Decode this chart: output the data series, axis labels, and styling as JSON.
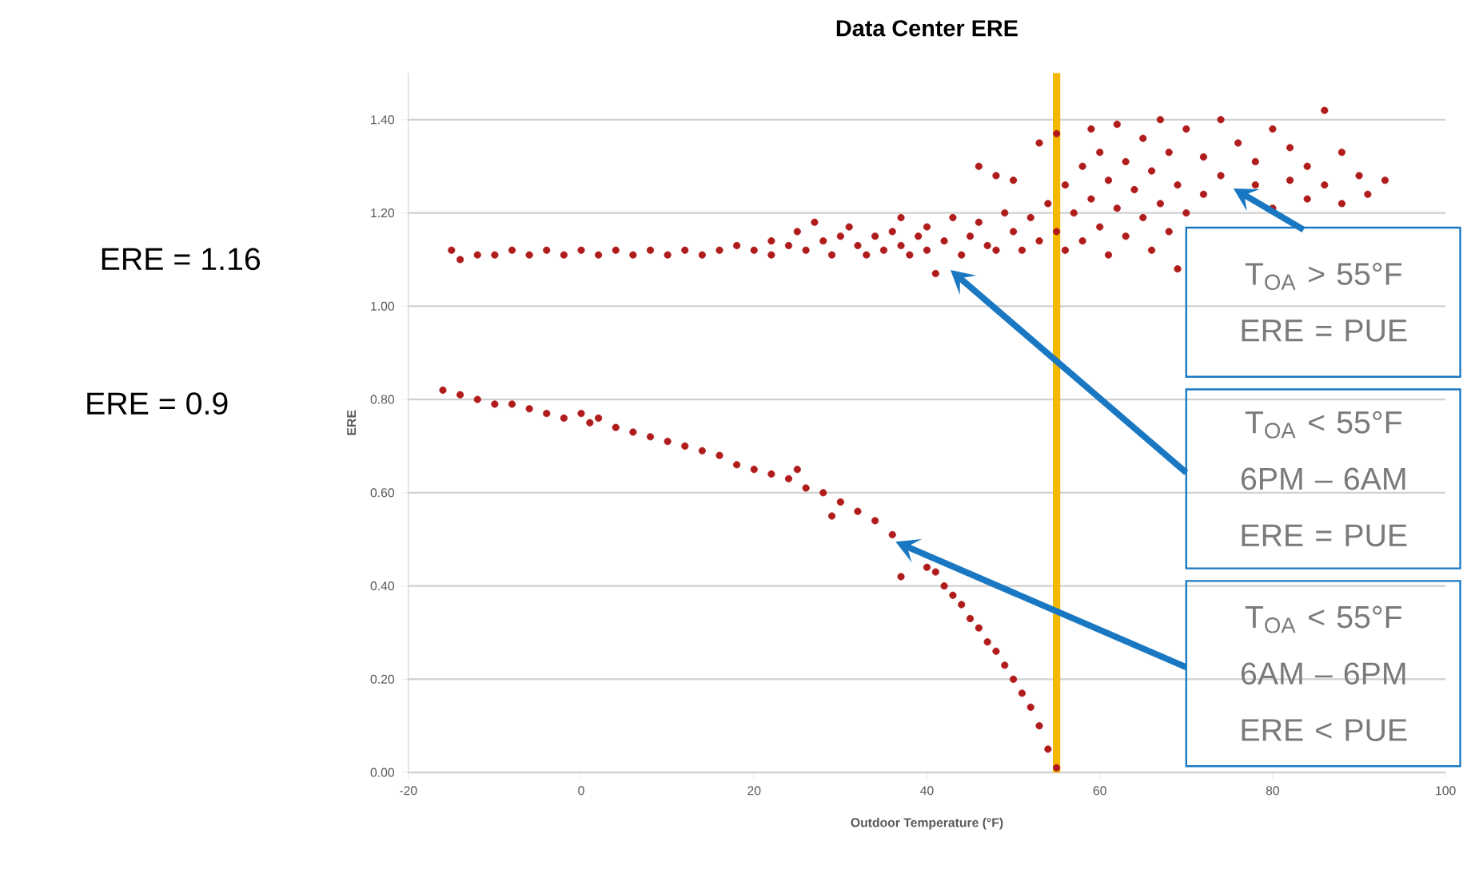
{
  "chart_data": {
    "type": "scatter",
    "title": "Data Center ERE",
    "xlabel": "Outdoor Temperature  (°F)",
    "ylabel": "ERE",
    "xlim": [
      -20,
      100
    ],
    "xticks": [
      -20,
      0,
      20,
      40,
      60,
      80,
      100
    ],
    "ylim": [
      0,
      1.5
    ],
    "yticks": [
      {
        "value": 0,
        "label": "0.00"
      },
      {
        "value": 0.2,
        "label": "0.20"
      },
      {
        "value": 0.4,
        "label": "0.40"
      },
      {
        "value": 0.6,
        "label": "0.60"
      },
      {
        "value": 0.8,
        "label": "0.80"
      },
      {
        "value": 1.0,
        "label": "1.00"
      },
      {
        "value": 1.2,
        "label": "1.20"
      },
      {
        "value": 1.4,
        "label": "1.40"
      }
    ],
    "grid": "y",
    "marker": "circle",
    "series": [
      {
        "color": "#b01c1c",
        "x": [
          -15,
          -14,
          -12,
          -10,
          -8,
          -6,
          -4,
          -2,
          0,
          2,
          4,
          6,
          8,
          10,
          12,
          14,
          16,
          18,
          20,
          22,
          22,
          24,
          25,
          26,
          27,
          28,
          29,
          30,
          31,
          32,
          33,
          34,
          35,
          36,
          37,
          37,
          38,
          39,
          40,
          40,
          41,
          42,
          43,
          44,
          45,
          46,
          46,
          47,
          48,
          48,
          49,
          50,
          50,
          51,
          52,
          53,
          53,
          54,
          55,
          55,
          56,
          56,
          57,
          58,
          58,
          59,
          59,
          60,
          60,
          61,
          61,
          62,
          62,
          63,
          63,
          64,
          65,
          65,
          66,
          66,
          67,
          67,
          68,
          68,
          69,
          69,
          70,
          70,
          72,
          72,
          74,
          74,
          76,
          78,
          78,
          80,
          80,
          82,
          82,
          84,
          84,
          86,
          86,
          88,
          88,
          90,
          91,
          93
        ],
        "values": [
          1.12,
          1.1,
          1.11,
          1.11,
          1.12,
          1.11,
          1.12,
          1.11,
          1.12,
          1.11,
          1.12,
          1.11,
          1.12,
          1.11,
          1.12,
          1.11,
          1.12,
          1.13,
          1.12,
          1.14,
          1.11,
          1.13,
          1.16,
          1.12,
          1.18,
          1.14,
          1.11,
          1.15,
          1.17,
          1.13,
          1.11,
          1.15,
          1.12,
          1.16,
          1.19,
          1.13,
          1.11,
          1.15,
          1.17,
          1.12,
          1.07,
          1.14,
          1.19,
          1.11,
          1.15,
          1.18,
          1.3,
          1.13,
          1.12,
          1.28,
          1.2,
          1.16,
          1.27,
          1.12,
          1.19,
          1.14,
          1.35,
          1.22,
          1.16,
          1.37,
          1.12,
          1.26,
          1.2,
          1.3,
          1.14,
          1.38,
          1.23,
          1.17,
          1.33,
          1.11,
          1.27,
          1.21,
          1.39,
          1.15,
          1.31,
          1.25,
          1.19,
          1.36,
          1.12,
          1.29,
          1.22,
          1.4,
          1.16,
          1.33,
          1.26,
          1.08,
          1.2,
          1.38,
          1.24,
          1.32,
          1.28,
          1.4,
          1.35,
          1.26,
          1.31,
          1.21,
          1.38,
          1.27,
          1.34,
          1.23,
          1.3,
          1.26,
          1.42,
          1.22,
          1.33,
          1.28,
          1.24,
          1.27
        ]
      },
      {
        "color": "#b01c1c",
        "x": [
          -16,
          -14,
          -12,
          -10,
          -8,
          -6,
          -4,
          -2,
          0,
          1,
          2,
          4,
          6,
          8,
          10,
          12,
          14,
          16,
          18,
          20,
          22,
          24,
          25,
          26,
          28,
          29,
          30,
          32,
          34,
          36,
          37,
          38,
          40,
          41,
          42,
          43,
          44,
          45,
          46,
          47,
          48,
          49,
          50,
          51,
          52,
          53,
          54,
          55
        ],
        "values": [
          0.82,
          0.81,
          0.8,
          0.79,
          0.79,
          0.78,
          0.77,
          0.76,
          0.77,
          0.75,
          0.76,
          0.74,
          0.73,
          0.72,
          0.71,
          0.7,
          0.69,
          0.68,
          0.66,
          0.65,
          0.64,
          0.63,
          0.65,
          0.61,
          0.6,
          0.55,
          0.58,
          0.56,
          0.54,
          0.51,
          0.42,
          null,
          0.44,
          0.43,
          0.4,
          0.38,
          0.36,
          0.33,
          0.31,
          0.28,
          0.26,
          0.23,
          0.2,
          0.17,
          0.14,
          0.1,
          0.05,
          0.01
        ]
      }
    ],
    "ref_lines": [
      {
        "axis": "x",
        "value": 55,
        "color": "#f5b800"
      }
    ],
    "annotations": [
      "ERE = 1.16",
      "ERE = 0.9",
      "T$_{OA}$ > 55°F ERE = PUE",
      "T$_{OA}$ < 55°F 6PM – 6AM ERE = PUE",
      "T$_{OA}$ < 55°F 6AM – 6PM ERE < PUE"
    ]
  }
}
